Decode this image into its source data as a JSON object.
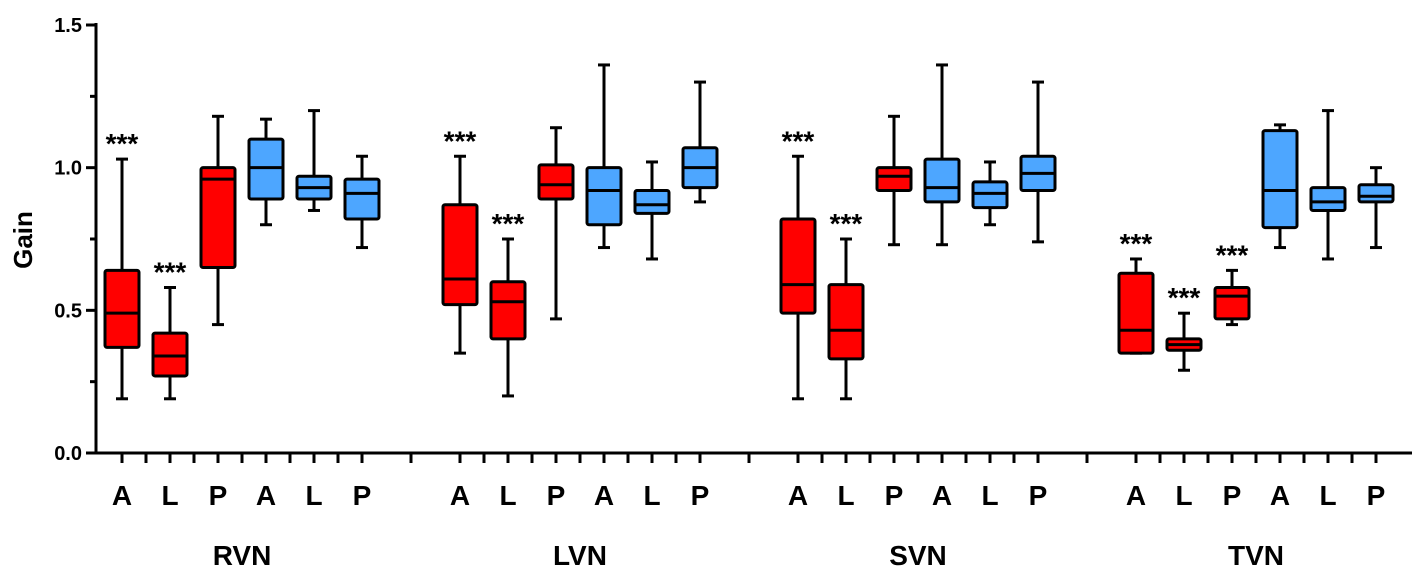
{
  "chart_data": {
    "type": "boxplot",
    "ylabel": "Gain",
    "ylim": [
      0.0,
      1.5
    ],
    "yticks": [
      "0.0",
      "0.5",
      "1.0",
      "1.5"
    ],
    "colors": {
      "red": "#ff0000",
      "blue": "#4da6ff"
    },
    "groups": [
      {
        "name": "RVN",
        "boxes": [
          {
            "label": "A",
            "color": "red",
            "min": 0.19,
            "q1": 0.37,
            "median": 0.49,
            "q3": 0.64,
            "max": 1.03,
            "annotation": "***"
          },
          {
            "label": "L",
            "color": "red",
            "min": 0.19,
            "q1": 0.27,
            "median": 0.34,
            "q3": 0.42,
            "max": 0.58,
            "annotation": "***"
          },
          {
            "label": "P",
            "color": "red",
            "min": 0.45,
            "q1": 0.65,
            "median": 0.96,
            "q3": 1.0,
            "max": 1.18,
            "annotation": ""
          },
          {
            "label": "A",
            "color": "blue",
            "min": 0.8,
            "q1": 0.89,
            "median": 1.0,
            "q3": 1.1,
            "max": 1.17,
            "annotation": ""
          },
          {
            "label": "L",
            "color": "blue",
            "min": 0.85,
            "q1": 0.89,
            "median": 0.93,
            "q3": 0.97,
            "max": 1.2,
            "annotation": ""
          },
          {
            "label": "P",
            "color": "blue",
            "min": 0.72,
            "q1": 0.82,
            "median": 0.91,
            "q3": 0.96,
            "max": 1.04,
            "annotation": ""
          }
        ]
      },
      {
        "name": "LVN",
        "boxes": [
          {
            "label": "A",
            "color": "red",
            "min": 0.35,
            "q1": 0.52,
            "median": 0.61,
            "q3": 0.87,
            "max": 1.04,
            "annotation": "***"
          },
          {
            "label": "L",
            "color": "red",
            "min": 0.2,
            "q1": 0.4,
            "median": 0.53,
            "q3": 0.6,
            "max": 0.75,
            "annotation": "***"
          },
          {
            "label": "P",
            "color": "red",
            "min": 0.47,
            "q1": 0.89,
            "median": 0.94,
            "q3": 1.01,
            "max": 1.14,
            "annotation": ""
          },
          {
            "label": "A",
            "color": "blue",
            "min": 0.72,
            "q1": 0.8,
            "median": 0.92,
            "q3": 1.0,
            "max": 1.36,
            "annotation": ""
          },
          {
            "label": "L",
            "color": "blue",
            "min": 0.68,
            "q1": 0.84,
            "median": 0.87,
            "q3": 0.92,
            "max": 1.02,
            "annotation": ""
          },
          {
            "label": "P",
            "color": "blue",
            "min": 0.88,
            "q1": 0.93,
            "median": 1.0,
            "q3": 1.07,
            "max": 1.3,
            "annotation": ""
          }
        ]
      },
      {
        "name": "SVN",
        "boxes": [
          {
            "label": "A",
            "color": "red",
            "min": 0.19,
            "q1": 0.49,
            "median": 0.59,
            "q3": 0.82,
            "max": 1.04,
            "annotation": "***"
          },
          {
            "label": "L",
            "color": "red",
            "min": 0.19,
            "q1": 0.33,
            "median": 0.43,
            "q3": 0.59,
            "max": 0.75,
            "annotation": "***"
          },
          {
            "label": "P",
            "color": "red",
            "min": 0.73,
            "q1": 0.92,
            "median": 0.97,
            "q3": 1.0,
            "max": 1.18,
            "annotation": ""
          },
          {
            "label": "A",
            "color": "blue",
            "min": 0.73,
            "q1": 0.88,
            "median": 0.93,
            "q3": 1.03,
            "max": 1.36,
            "annotation": ""
          },
          {
            "label": "L",
            "color": "blue",
            "min": 0.8,
            "q1": 0.86,
            "median": 0.91,
            "q3": 0.95,
            "max": 1.02,
            "annotation": ""
          },
          {
            "label": "P",
            "color": "blue",
            "min": 0.74,
            "q1": 0.92,
            "median": 0.98,
            "q3": 1.04,
            "max": 1.3,
            "annotation": ""
          }
        ]
      },
      {
        "name": "TVN",
        "boxes": [
          {
            "label": "A",
            "color": "red",
            "min": 0.35,
            "q1": 0.35,
            "median": 0.43,
            "q3": 0.63,
            "max": 0.68,
            "annotation": "***"
          },
          {
            "label": "L",
            "color": "red",
            "min": 0.29,
            "q1": 0.36,
            "median": 0.38,
            "q3": 0.4,
            "max": 0.49,
            "annotation": "***"
          },
          {
            "label": "P",
            "color": "red",
            "min": 0.45,
            "q1": 0.47,
            "median": 0.55,
            "q3": 0.58,
            "max": 0.64,
            "annotation": "***"
          },
          {
            "label": "A",
            "color": "blue",
            "min": 0.72,
            "q1": 0.79,
            "median": 0.92,
            "q3": 1.13,
            "max": 1.15,
            "annotation": ""
          },
          {
            "label": "L",
            "color": "blue",
            "min": 0.68,
            "q1": 0.85,
            "median": 0.88,
            "q3": 0.93,
            "max": 1.2,
            "annotation": ""
          },
          {
            "label": "P",
            "color": "blue",
            "min": 0.72,
            "q1": 0.88,
            "median": 0.9,
            "q3": 0.94,
            "max": 1.0,
            "annotation": ""
          }
        ]
      }
    ]
  }
}
